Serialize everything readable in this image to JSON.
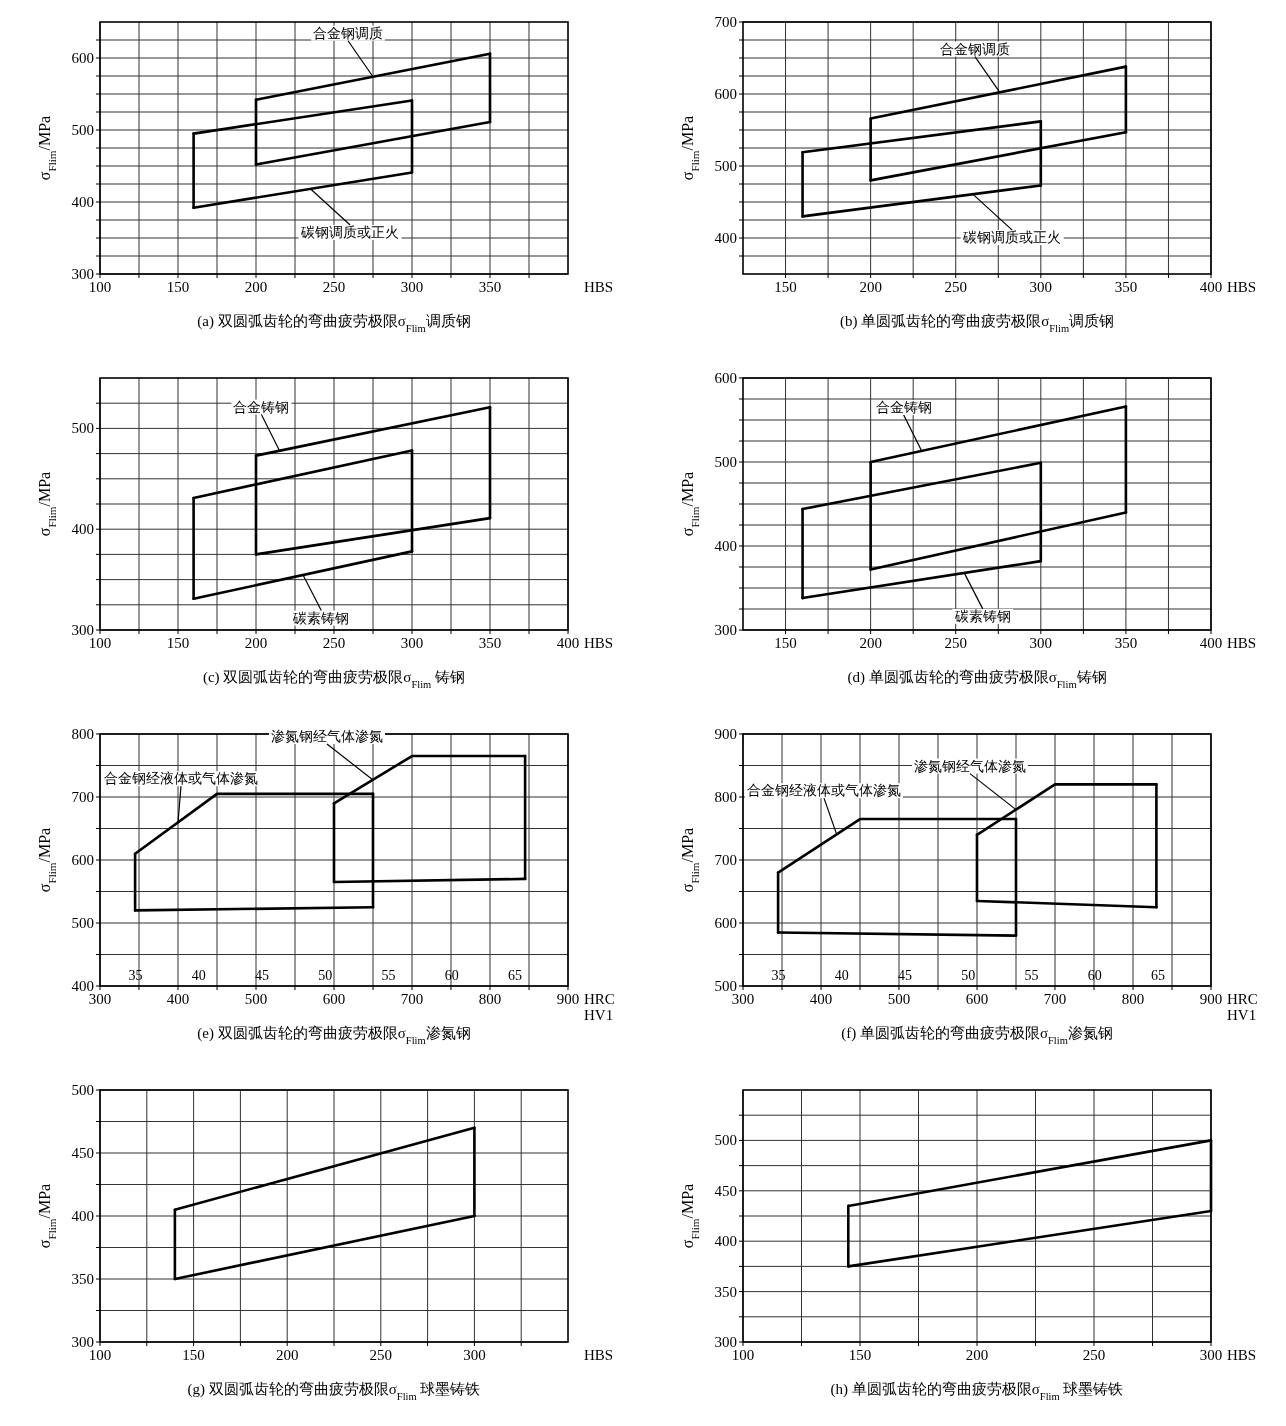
{
  "chart_data": [
    {
      "type": "line",
      "title": "(a) 双圆弧齿轮的弯曲疲劳极限σ$_{Flim}$调质钢",
      "xlabel": "HBS",
      "ylabel": "σ$_{Flim}$/MPa",
      "xlim": [
        100,
        400
      ],
      "ylim": [
        300,
        650
      ],
      "grid": true,
      "xticks": [
        100,
        {
          "value": 125,
          "label": null
        },
        150,
        {
          "value": 175,
          "label": null
        },
        200,
        {
          "value": 225,
          "label": null
        },
        250,
        {
          "value": 275,
          "label": null
        },
        300,
        {
          "value": 325,
          "label": null
        },
        350,
        {
          "value": 375,
          "label": null
        }
      ],
      "yticks": [
        300,
        {
          "value": 325,
          "label": null
        },
        {
          "value": 350,
          "label": null
        },
        {
          "value": 375,
          "label": null
        },
        400,
        {
          "value": 425,
          "label": null
        },
        {
          "value": 450,
          "label": null
        },
        {
          "value": 475,
          "label": null
        },
        500,
        {
          "value": 525,
          "label": null
        },
        {
          "value": 550,
          "label": null
        },
        {
          "value": 575,
          "label": null
        },
        600,
        {
          "value": 625,
          "label": null
        }
      ],
      "series": [
        {
          "color": "#000000",
          "x": [
            160,
            300
          ],
          "values": [
            495,
            541
          ]
        },
        {
          "color": "#000000",
          "x": [
            160,
            300
          ],
          "values": [
            392,
            441
          ]
        },
        {
          "color": "#000000",
          "x": [
            160,
            160
          ],
          "values": [
            392,
            495
          ]
        },
        {
          "color": "#000000",
          "x": [
            300,
            300
          ],
          "values": [
            441,
            541
          ]
        },
        {
          "color": "#000000",
          "x": [
            200,
            350
          ],
          "values": [
            542,
            606
          ]
        },
        {
          "color": "#000000",
          "x": [
            200,
            350
          ],
          "values": [
            452,
            511
          ]
        },
        {
          "color": "#000000",
          "x": [
            200,
            200
          ],
          "values": [
            452,
            542
          ]
        },
        {
          "color": "#000000",
          "x": [
            350,
            350
          ],
          "values": [
            511,
            606
          ]
        }
      ],
      "annotations": [
        {
          "text": "合金钢调质",
          "x": 275,
          "y": 574
        },
        {
          "text": "碳钢调质或正火",
          "x": 235,
          "y": 418
        }
      ]
    },
    {
      "type": "line",
      "title": "(b) 单圆弧齿轮的弯曲疲劳极限σ$_{Flim}$调质钢",
      "xlabel": "HBS",
      "ylabel": "σ$_{Flim}$/MPa",
      "xlim": [
        125,
        400
      ],
      "ylim": [
        350,
        700
      ],
      "grid": true,
      "xticks": [
        150,
        {
          "value": 175,
          "label": null
        },
        200,
        {
          "value": 225,
          "label": null
        },
        250,
        {
          "value": 275,
          "label": null
        },
        300,
        {
          "value": 325,
          "label": null
        },
        350,
        {
          "value": 375,
          "label": null
        },
        400
      ],
      "yticks": [
        {
          "value": 375,
          "label": null
        },
        400,
        {
          "value": 425,
          "label": null
        },
        {
          "value": 450,
          "label": null
        },
        {
          "value": 475,
          "label": null
        },
        500,
        {
          "value": 525,
          "label": null
        },
        {
          "value": 550,
          "label": null
        },
        {
          "value": 575,
          "label": null
        },
        600,
        {
          "value": 625,
          "label": null
        },
        {
          "value": 650,
          "label": null
        },
        {
          "value": 675,
          "label": null
        },
        700
      ],
      "series": [
        {
          "color": "#000000",
          "x": [
            160,
            300
          ],
          "values": [
            519,
            562
          ]
        },
        {
          "color": "#000000",
          "x": [
            160,
            300
          ],
          "values": [
            430,
            473
          ]
        },
        {
          "color": "#000000",
          "x": [
            160,
            160
          ],
          "values": [
            430,
            519
          ]
        },
        {
          "color": "#000000",
          "x": [
            300,
            300
          ],
          "values": [
            473,
            562
          ]
        },
        {
          "color": "#000000",
          "x": [
            200,
            350
          ],
          "values": [
            566,
            638
          ]
        },
        {
          "color": "#000000",
          "x": [
            200,
            350
          ],
          "values": [
            480,
            547
          ]
        },
        {
          "color": "#000000",
          "x": [
            200,
            200
          ],
          "values": [
            480,
            566
          ]
        },
        {
          "color": "#000000",
          "x": [
            350,
            350
          ],
          "values": [
            547,
            638
          ]
        }
      ],
      "annotations": [
        {
          "text": "合金钢调质",
          "x": 276,
          "y": 602
        },
        {
          "text": "碳钢调质或正火",
          "x": 260,
          "y": 461
        }
      ]
    },
    {
      "type": "line",
      "title": "(c) 双圆弧齿轮的弯曲疲劳极限σ$_{Flim}$ 铸钢",
      "xlabel": "HBS",
      "ylabel": "σ$_{Flim}$/MPa",
      "xlim": [
        100,
        400
      ],
      "ylim": [
        300,
        550
      ],
      "grid": true,
      "xticks": [
        100,
        {
          "value": 125,
          "label": null
        },
        150,
        {
          "value": 175,
          "label": null
        },
        200,
        {
          "value": 225,
          "label": null
        },
        250,
        {
          "value": 275,
          "label": null
        },
        300,
        {
          "value": 325,
          "label": null
        },
        350,
        {
          "value": 375,
          "label": null
        },
        400
      ],
      "yticks": [
        300,
        {
          "value": 325,
          "label": null
        },
        {
          "value": 350,
          "label": null
        },
        {
          "value": 375,
          "label": null
        },
        400,
        {
          "value": 425,
          "label": null
        },
        {
          "value": 450,
          "label": null
        },
        {
          "value": 475,
          "label": null
        },
        500,
        {
          "value": 525,
          "label": null
        }
      ],
      "series": [
        {
          "color": "#000000",
          "x": [
            160,
            300
          ],
          "values": [
            431,
            478
          ]
        },
        {
          "color": "#000000",
          "x": [
            160,
            300
          ],
          "values": [
            331,
            378
          ]
        },
        {
          "color": "#000000",
          "x": [
            160,
            160
          ],
          "values": [
            331,
            431
          ]
        },
        {
          "color": "#000000",
          "x": [
            300,
            300
          ],
          "values": [
            378,
            478
          ]
        },
        {
          "color": "#000000",
          "x": [
            200,
            350
          ],
          "values": [
            473,
            521
          ]
        },
        {
          "color": "#000000",
          "x": [
            200,
            350
          ],
          "values": [
            375,
            411
          ]
        },
        {
          "color": "#000000",
          "x": [
            200,
            200
          ],
          "values": [
            375,
            473
          ]
        },
        {
          "color": "#000000",
          "x": [
            350,
            350
          ],
          "values": [
            411,
            521
          ]
        }
      ],
      "annotations": [
        {
          "text": "合金铸钢",
          "x": 215,
          "y": 478
        },
        {
          "text": "碳素铸钢",
          "x": 230,
          "y": 355
        }
      ]
    },
    {
      "type": "line",
      "title": "(d) 单圆弧齿轮的弯曲疲劳极限σ$_{Flim}$铸钢",
      "xlabel": "HBS",
      "ylabel": "σ$_{Flim}$/MPa",
      "xlim": [
        125,
        400
      ],
      "ylim": [
        300,
        600
      ],
      "grid": true,
      "xticks": [
        150,
        {
          "value": 175,
          "label": null
        },
        200,
        {
          "value": 225,
          "label": null
        },
        250,
        {
          "value": 275,
          "label": null
        },
        300,
        {
          "value": 325,
          "label": null
        },
        350,
        {
          "value": 375,
          "label": null
        },
        400
      ],
      "yticks": [
        300,
        {
          "value": 325,
          "label": null
        },
        {
          "value": 350,
          "label": null
        },
        {
          "value": 375,
          "label": null
        },
        400,
        {
          "value": 425,
          "label": null
        },
        {
          "value": 450,
          "label": null
        },
        {
          "value": 475,
          "label": null
        },
        500,
        {
          "value": 525,
          "label": null
        },
        {
          "value": 550,
          "label": null
        },
        {
          "value": 575,
          "label": null
        },
        600
      ],
      "series": [
        {
          "color": "#000000",
          "x": [
            160,
            300
          ],
          "values": [
            444,
            499
          ]
        },
        {
          "color": "#000000",
          "x": [
            160,
            300
          ],
          "values": [
            338,
            382
          ]
        },
        {
          "color": "#000000",
          "x": [
            160,
            160
          ],
          "values": [
            338,
            444
          ]
        },
        {
          "color": "#000000",
          "x": [
            300,
            300
          ],
          "values": [
            382,
            499
          ]
        },
        {
          "color": "#000000",
          "x": [
            200,
            350
          ],
          "values": [
            500,
            566
          ]
        },
        {
          "color": "#000000",
          "x": [
            200,
            350
          ],
          "values": [
            372,
            440
          ]
        },
        {
          "color": "#000000",
          "x": [
            200,
            200
          ],
          "values": [
            372,
            500
          ]
        },
        {
          "color": "#000000",
          "x": [
            350,
            350
          ],
          "values": [
            440,
            566
          ]
        }
      ],
      "annotations": [
        {
          "text": "合金铸钢",
          "x": 230,
          "y": 513
        },
        {
          "text": "碳素铸钢",
          "x": 255,
          "y": 368
        }
      ]
    },
    {
      "type": "line",
      "title": "(e) 双圆弧齿轮的弯曲疲劳极限σ$_{Flim}$渗氮钢",
      "xlabel": "HV1",
      "x2label": "HRC",
      "ylabel": "σ$_{Flim}$/MPa",
      "xlim": [
        300,
        900
      ],
      "ylim": [
        400,
        800
      ],
      "x2lim": [
        32.2,
        69.2
      ],
      "grid": true,
      "xticks": [
        300,
        {
          "value": 350,
          "label": null
        },
        400,
        {
          "value": 450,
          "label": null
        },
        500,
        {
          "value": 550,
          "label": null
        },
        600,
        {
          "value": 650,
          "label": null
        },
        700,
        {
          "value": 750,
          "label": null
        },
        800,
        {
          "value": 850,
          "label": null
        },
        900
      ],
      "yticks": [
        400,
        {
          "value": 450,
          "label": null
        },
        500,
        {
          "value": 550,
          "label": null
        },
        600,
        {
          "value": 650,
          "label": null
        },
        700,
        {
          "value": 750,
          "label": null
        },
        800
      ],
      "x2ticks": [
        35,
        40,
        45,
        50,
        55,
        60,
        65
      ],
      "series": [
        {
          "color": "#000000",
          "x": [
            345,
            450,
            650
          ],
          "values": [
            610,
            705,
            705
          ]
        },
        {
          "color": "#000000",
          "x": [
            345,
            650
          ],
          "values": [
            520,
            525
          ]
        },
        {
          "color": "#000000",
          "x": [
            345,
            345
          ],
          "values": [
            520,
            610
          ]
        },
        {
          "color": "#000000",
          "x": [
            650,
            650
          ],
          "values": [
            525,
            705
          ]
        },
        {
          "color": "#000000",
          "x": [
            600,
            700,
            845
          ],
          "values": [
            690,
            765,
            765
          ]
        },
        {
          "color": "#000000",
          "x": [
            600,
            845
          ],
          "values": [
            565,
            570
          ]
        },
        {
          "color": "#000000",
          "x": [
            600,
            600
          ],
          "values": [
            565,
            690
          ]
        },
        {
          "color": "#000000",
          "x": [
            845,
            845
          ],
          "values": [
            570,
            765
          ]
        }
      ],
      "annotations": [
        {
          "text": "合金钢经液体或气体渗氮",
          "x": 400,
          "y": 660
        },
        {
          "text": "渗氮钢经气体渗氮",
          "x": 650,
          "y": 727
        }
      ]
    },
    {
      "type": "line",
      "title": "(f) 单圆弧齿轮的弯曲疲劳极限σ$_{Flim}$渗氮钢",
      "xlabel": "HV1",
      "x2label": "HRC",
      "ylabel": "σ$_{Flim}$/MPa",
      "xlim": [
        300,
        900
      ],
      "ylim": [
        500,
        900
      ],
      "x2lim": [
        32.2,
        69.2
      ],
      "grid": true,
      "xticks": [
        300,
        {
          "value": 350,
          "label": null
        },
        400,
        {
          "value": 450,
          "label": null
        },
        500,
        {
          "value": 550,
          "label": null
        },
        600,
        {
          "value": 650,
          "label": null
        },
        700,
        {
          "value": 750,
          "label": null
        },
        800,
        {
          "value": 850,
          "label": null
        },
        900
      ],
      "yticks": [
        500,
        {
          "value": 550,
          "label": null
        },
        600,
        {
          "value": 650,
          "label": null
        },
        700,
        {
          "value": 750,
          "label": null
        },
        800,
        {
          "value": 850,
          "label": null
        },
        900
      ],
      "x2ticks": [
        35,
        40,
        45,
        50,
        55,
        60,
        65
      ],
      "series": [
        {
          "color": "#000000",
          "x": [
            345,
            450,
            650
          ],
          "values": [
            680,
            765,
            765
          ]
        },
        {
          "color": "#000000",
          "x": [
            345,
            650
          ],
          "values": [
            585,
            580
          ]
        },
        {
          "color": "#000000",
          "x": [
            345,
            345
          ],
          "values": [
            585,
            680
          ]
        },
        {
          "color": "#000000",
          "x": [
            650,
            650
          ],
          "values": [
            580,
            765
          ]
        },
        {
          "color": "#000000",
          "x": [
            600,
            700,
            830
          ],
          "values": [
            740,
            820,
            820
          ]
        },
        {
          "color": "#000000",
          "x": [
            600,
            830
          ],
          "values": [
            635,
            625
          ]
        },
        {
          "color": "#000000",
          "x": [
            600,
            600
          ],
          "values": [
            635,
            740
          ]
        },
        {
          "color": "#000000",
          "x": [
            830,
            830
          ],
          "values": [
            625,
            820
          ]
        }
      ],
      "annotations": [
        {
          "text": "合金钢经液体或气体渗氮",
          "x": 420,
          "y": 741
        },
        {
          "text": "渗氮钢经气体渗氮",
          "x": 650,
          "y": 780
        }
      ]
    },
    {
      "type": "line",
      "title": "(g) 双圆弧齿轮的弯曲疲劳极限σ$_{Flim}$ 球墨铸铁",
      "xlabel": "HBS",
      "ylabel": "σ$_{Flim}$/MPa",
      "xlim": [
        100,
        350
      ],
      "ylim": [
        300,
        500
      ],
      "grid": true,
      "xticks": [
        100,
        {
          "value": 125,
          "label": null
        },
        150,
        {
          "value": 175,
          "label": null
        },
        200,
        {
          "value": 225,
          "label": null
        },
        250,
        {
          "value": 275,
          "label": null
        },
        300,
        {
          "value": 325,
          "label": null
        }
      ],
      "yticks": [
        300,
        {
          "value": 325,
          "label": null
        },
        350,
        {
          "value": 375,
          "label": null
        },
        400,
        {
          "value": 425,
          "label": null
        },
        450,
        {
          "value": 475,
          "label": null
        },
        500
      ],
      "series": [
        {
          "color": "#000000",
          "x": [
            140,
            300
          ],
          "values": [
            405,
            470
          ]
        },
        {
          "color": "#000000",
          "x": [
            140,
            300
          ],
          "values": [
            350,
            400
          ]
        },
        {
          "color": "#000000",
          "x": [
            140,
            140
          ],
          "values": [
            350,
            405
          ]
        },
        {
          "color": "#000000",
          "x": [
            300,
            300
          ],
          "values": [
            400,
            470
          ]
        }
      ]
    },
    {
      "type": "line",
      "title": "(h) 单圆弧齿轮的弯曲疲劳极限σ$_{Flim}$ 球墨铸铁",
      "xlabel": "HBS",
      "ylabel": "σ$_{Flim}$/MPa",
      "xlim": [
        100,
        300
      ],
      "ylim": [
        300,
        550
      ],
      "grid": true,
      "xticks": [
        100,
        {
          "value": 125,
          "label": null
        },
        150,
        {
          "value": 175,
          "label": null
        },
        200,
        {
          "value": 225,
          "label": null
        },
        250,
        {
          "value": 275,
          "label": null
        },
        300
      ],
      "yticks": [
        300,
        {
          "value": 325,
          "label": null
        },
        350,
        {
          "value": 375,
          "label": null
        },
        400,
        {
          "value": 425,
          "label": null
        },
        450,
        {
          "value": 475,
          "label": null
        },
        500,
        {
          "value": 525,
          "label": null
        }
      ],
      "series": [
        {
          "color": "#000000",
          "x": [
            145,
            300
          ],
          "values": [
            435,
            500
          ]
        },
        {
          "color": "#000000",
          "x": [
            145,
            300
          ],
          "values": [
            375,
            430
          ]
        },
        {
          "color": "#000000",
          "x": [
            145,
            145
          ],
          "values": [
            375,
            435
          ]
        },
        {
          "color": "#000000",
          "x": [
            300,
            300
          ],
          "values": [
            430,
            500
          ]
        }
      ]
    }
  ]
}
